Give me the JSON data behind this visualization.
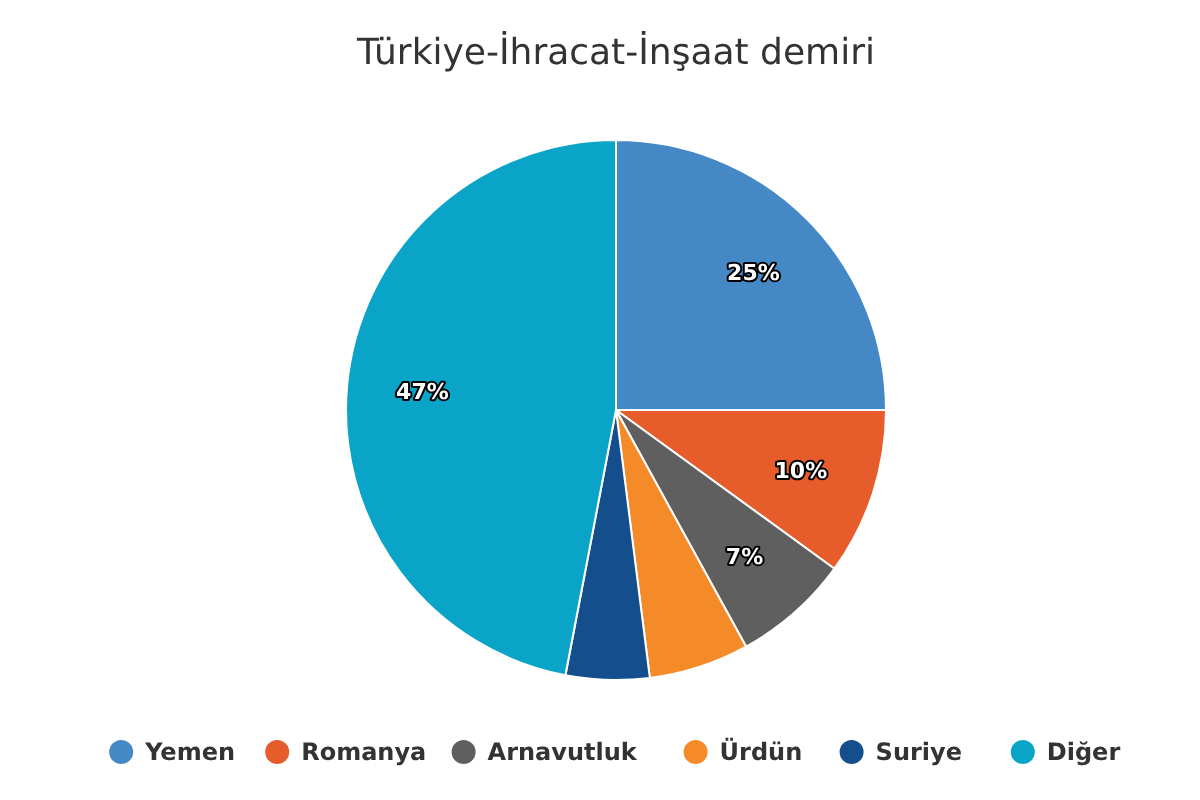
{
  "chart_data": {
    "type": "pie",
    "title": "Türkiye-İhracat-İnşaat demiri",
    "categories": [
      "Yemen",
      "Romanya",
      "Arnavutluk",
      "Ürdün",
      "Suriye",
      "Diğer"
    ],
    "values": [
      25,
      10,
      7,
      6,
      5,
      47
    ],
    "colors": [
      "#4488c6",
      "#e65c2a",
      "#5f5f5f",
      "#f58a28",
      "#154e8c",
      "#0ba4c9"
    ],
    "value_labels": [
      "25%",
      "10%",
      "7%",
      null,
      null,
      "47%"
    ],
    "legend": "bottom"
  }
}
